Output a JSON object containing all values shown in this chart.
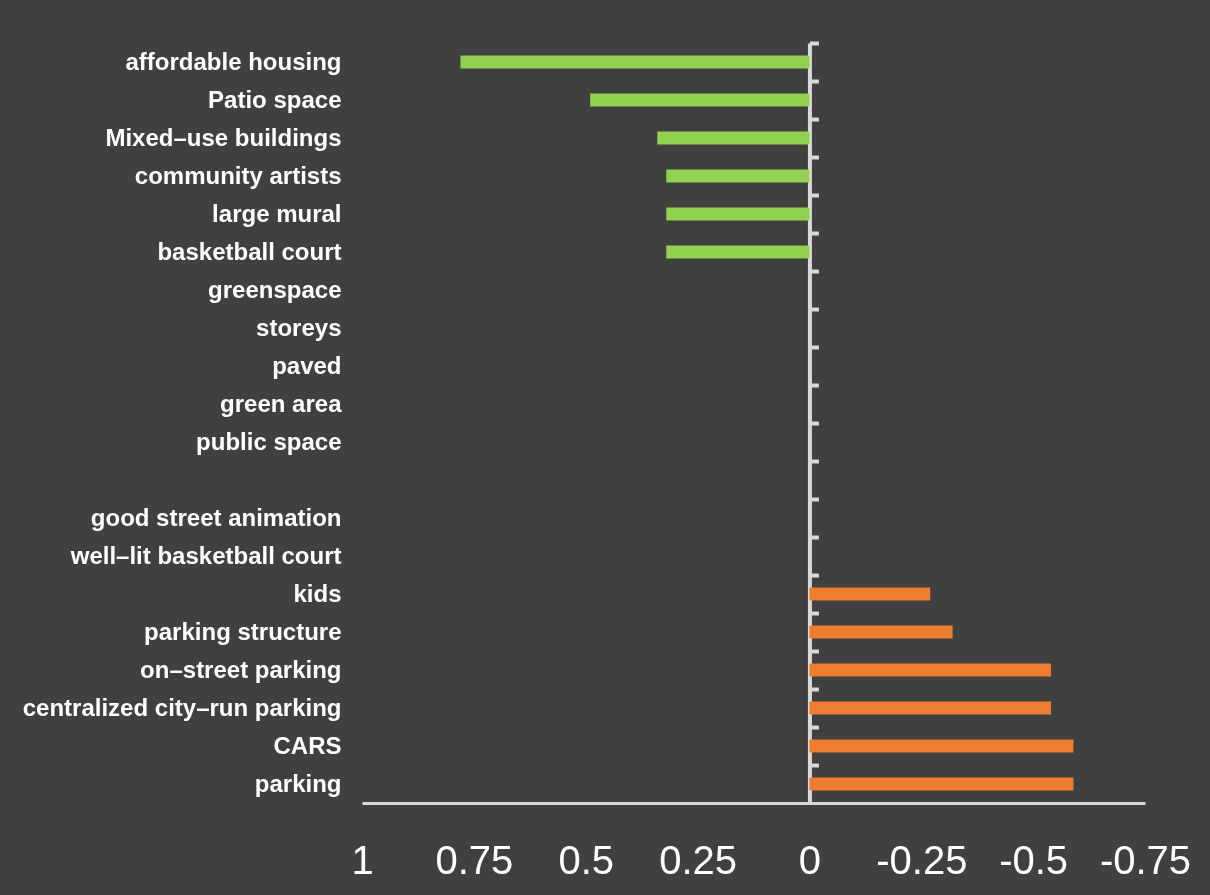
{
  "chart_data": {
    "type": "bar",
    "orientation": "horizontal",
    "categories": [
      "affordable housing",
      "Patio space",
      "Mixed–use buildings",
      "community artists",
      "large mural",
      "basketball court",
      "greenspace",
      "storeys",
      "paved",
      "green area",
      "public space",
      null,
      "good street animation",
      "well–lit basketball court",
      "kids",
      "parking structure",
      "on–street parking",
      "centralized city–run parking",
      "CARS",
      "parking"
    ],
    "values": [
      0.78,
      0.49,
      0.34,
      0.32,
      0.32,
      0.32,
      0,
      0,
      0,
      0,
      0,
      0,
      0,
      0,
      -0.27,
      -0.32,
      -0.54,
      -0.54,
      -0.59,
      -0.59
    ],
    "colors": [
      "#92d050",
      "#92d050",
      "#92d050",
      "#92d050",
      "#92d050",
      "#92d050",
      "#92d050",
      "#92d050",
      "#92d050",
      "#92d050",
      "#92d050",
      "#92d050",
      "#92d050",
      "#92d050",
      "#ed7d31",
      "#ed7d31",
      "#ed7d31",
      "#ed7d31",
      "#ed7d31",
      "#ed7d31"
    ],
    "xlim": [
      1,
      -0.75
    ],
    "xticks": [
      1,
      0.75,
      0.5,
      0.25,
      0,
      -0.25,
      -0.5,
      -0.75
    ]
  }
}
